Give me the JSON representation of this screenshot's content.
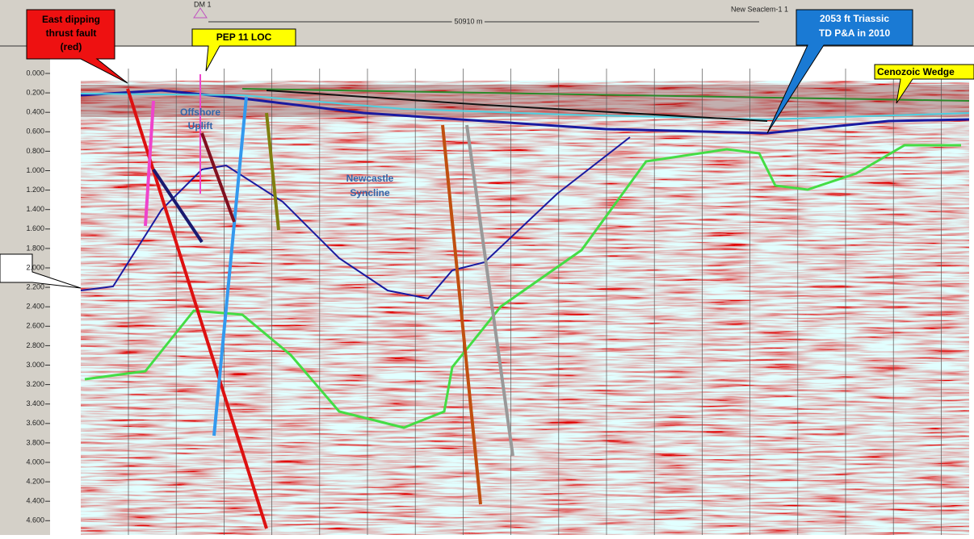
{
  "header": {
    "well_left": "DM 1",
    "distance": "50910 m",
    "well_right": "New Seaclem-1 1"
  },
  "callouts": {
    "thrust_fault": [
      "East dipping",
      "thrust fault",
      "(red)"
    ],
    "pep11": [
      "PEP 11 LOC"
    ],
    "triassic": [
      "2053 ft Triassic",
      "TD P&A in 2010"
    ],
    "cenozoic": [
      "Cenozoic Wedge"
    ]
  },
  "labels": {
    "offshore_uplift": [
      "Offshore",
      "Uplift"
    ],
    "newcastle_syncline": [
      "Newcastle",
      "Syncline"
    ]
  },
  "axis": {
    "ticks": [
      "0.000",
      "0.200",
      "0.400",
      "0.600",
      "0.800",
      "1.000",
      "1.200",
      "1.400",
      "1.600",
      "1.800",
      "2.000",
      "2.200",
      "2.400",
      "2.600",
      "2.800",
      "3.000",
      "3.200",
      "3.400",
      "3.600",
      "3.800",
      "4.000",
      "4.200",
      "4.400",
      "4.600"
    ]
  }
}
